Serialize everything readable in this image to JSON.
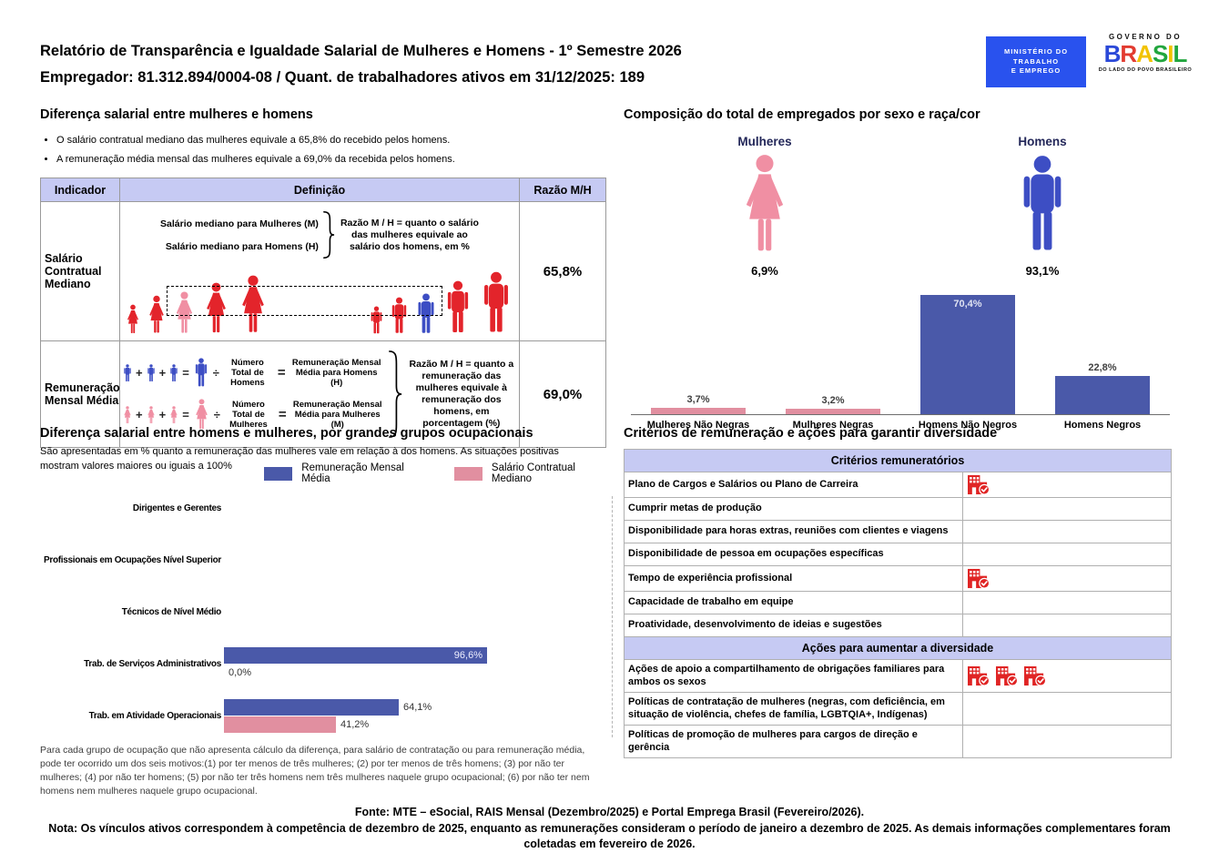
{
  "colors": {
    "blue": "#4A59A9",
    "pink": "#E18FA0",
    "manblue": "#3D4EC4",
    "womanpink": "#F08FA3",
    "red": "#E3242B",
    "lav": "#C6CAF3",
    "navy": "#232759",
    "mteblue": "#2952EE"
  },
  "header": {
    "title": "Relatório de Transparência e Igualdade Salarial de Mulheres e Homens - 1º Semestre 2026",
    "employer_line": "Empregador: 81.312.894/0004-08 / Quant. de trabalhadores ativos em 31/12/2025: 189",
    "mte_logo": {
      "line1": "MINISTÉRIO DO",
      "line2": "TRABALHO",
      "line3": "E EMPREGO"
    },
    "gov_logo": {
      "top": "GOVERNO DO",
      "word": "BRASIL",
      "word_colors": [
        "#2B49D8",
        "#E23B30",
        "#F2C300",
        "#22A63E",
        "#F2C300",
        "#22A63E"
      ],
      "bottom": "DO LADO DO POVO BRASILEIRO"
    }
  },
  "pay_gap": {
    "title": "Diferença salarial entre mulheres e homens",
    "bullets": [
      "O salário contratual mediano das mulheres equivale a 65,8% do recebido pelos homens.",
      "A remuneração média mensal das mulheres equivale a 69,0% da recebida pelos homens."
    ],
    "table": {
      "headers": [
        "Indicador",
        "Definição",
        "Razão M/H"
      ],
      "row1": {
        "indicator": "Salário Contratual Mediano",
        "line1": "Salário mediano para Mulheres (M)",
        "line2": "Salário mediano para Homens (H)",
        "note": "Razão M / H = quanto o salário das mulheres equivale ao salário dos homens, em %",
        "ratio": "65,8%"
      },
      "row2": {
        "indicator": "Remuneração Mensal Média",
        "plus": "+",
        "equals": "=",
        "divide": "÷",
        "formula_men": {
          "divisor": "Número Total de Homens",
          "result": "Remuneração Mensal Média para Homens (H)"
        },
        "formula_women": {
          "divisor": "Número Total de Mulheres",
          "result": "Remuneração Mensal Média para Mulheres (M)"
        },
        "note": "Razão M / H = quanto a remuneração das mulheres equivale à remuneração dos homens, em porcentagem (%)",
        "ratio": "69,0%"
      }
    }
  },
  "composition": {
    "title": "Composição do total de empregados por sexo e raça/cor",
    "groups": [
      {
        "label": "Mulheres",
        "value": "6,9%"
      },
      {
        "label": "Homens",
        "value": "93,1%"
      }
    ]
  },
  "occupational": {
    "title": "Diferença salarial entre homens e mulheres, por grandes grupos ocupacionais",
    "subtitle": "São apresentadas em % quanto a remuneração das mulheres vale em relação à dos homens. As situações positivas mostram valores maiores ou iguais a 100%",
    "footnote": "Para cada grupo de ocupação que não apresenta cálculo da diferença, para salário de contratação ou para remuneração média, pode ter ocorrido um dos seis motivos:(1) por ter menos de três mulheres; (2) por ter menos de três homens; (3) por não ter mulheres; (4) por não ter homens; (5) por não ter três homens nem três mulheres naquele grupo ocupacional; (6) por não ter nem homens nem mulheres naquele grupo ocupacional."
  },
  "criteria": {
    "title": "Critérios de remuneração e ações para garantir diversidade",
    "sections": [
      {
        "header": "Critérios remuneratórios",
        "rows": [
          {
            "label": "Plano de Cargos e Salários ou Plano de Carreira",
            "icons": 1
          },
          {
            "label": "Cumprir metas de produção",
            "icons": 0
          },
          {
            "label": "Disponibilidade para horas extras, reuniões com clientes e viagens",
            "icons": 0
          },
          {
            "label": "Disponibilidade de pessoa em ocupações específicas",
            "icons": 0
          },
          {
            "label": "Tempo de experiência profissional",
            "icons": 1
          },
          {
            "label": "Capacidade de trabalho em equipe",
            "icons": 0
          },
          {
            "label": "Proatividade, desenvolvimento de ideias e sugestões",
            "icons": 0
          }
        ]
      },
      {
        "header": "Ações para aumentar a diversidade",
        "rows": [
          {
            "label": "Ações de apoio a compartilhamento de obrigações familiares para ambos os sexos",
            "icons": 3
          },
          {
            "label": "Políticas de contratação de mulheres (negras, com deficiência, em situação de violência, chefes de família, LGBTQIA+, Indígenas)",
            "icons": 0
          },
          {
            "label": "Políticas de promoção de mulheres para cargos de direção e gerência",
            "icons": 0
          }
        ]
      }
    ]
  },
  "footer": {
    "fonte": "Fonte: MTE – eSocial, RAIS Mensal (Dezembro/2025) e Portal Emprega Brasil (Fevereiro/2026).",
    "nota": "Nota: Os vínculos ativos correspondem à competência de dezembro de 2025, enquanto as remunerações consideram o período de janeiro a dezembro de 2025. As demais informações complementares foram coletadas em fevereiro de 2026."
  },
  "chart_data": [
    {
      "id": "composition",
      "type": "bar",
      "title": "Composição do total de empregados por sexo e raça/cor",
      "categories": [
        "Mulheres Não Negras",
        "Mulheres Negras",
        "Homens Não Negros",
        "Homens Negros"
      ],
      "values": [
        3.7,
        3.2,
        70.4,
        22.8
      ],
      "labels": [
        "3,7%",
        "3,2%",
        "70,4%",
        "22,8%"
      ],
      "colors": [
        "#E18FA0",
        "#E18FA0",
        "#4A59A9",
        "#4A59A9"
      ],
      "xlabel": "",
      "ylabel": "",
      "ylim": [
        0,
        75
      ],
      "grid": false,
      "legend": false
    },
    {
      "id": "occupational",
      "type": "horizontal-bar",
      "title": "Diferença salarial entre homens e mulheres, por grandes grupos ocupacionais",
      "categories": [
        "Dirigentes e Gerentes",
        "Profissionais em Ocupações Nível Superior",
        "Técnicos de Nível Médio",
        "Trab. de Serviços Administrativos",
        "Trab. em Atividade Operacionais"
      ],
      "series": [
        {
          "name": "Remuneração Mensal Média",
          "color": "#4A59A9",
          "values": [
            null,
            null,
            null,
            96.6,
            64.1
          ],
          "labels": [
            "",
            "",
            "",
            "96,6%",
            "64,1%"
          ]
        },
        {
          "name": "Salário Contratual Mediano",
          "color": "#E18FA0",
          "values": [
            null,
            null,
            null,
            0.0,
            41.2
          ],
          "labels": [
            "",
            "",
            "",
            "0,0%",
            "41,2%"
          ]
        }
      ],
      "xlabel": "",
      "ylabel": "",
      "xlim": [
        0,
        100
      ],
      "grid": false,
      "legend_position": "top"
    }
  ]
}
